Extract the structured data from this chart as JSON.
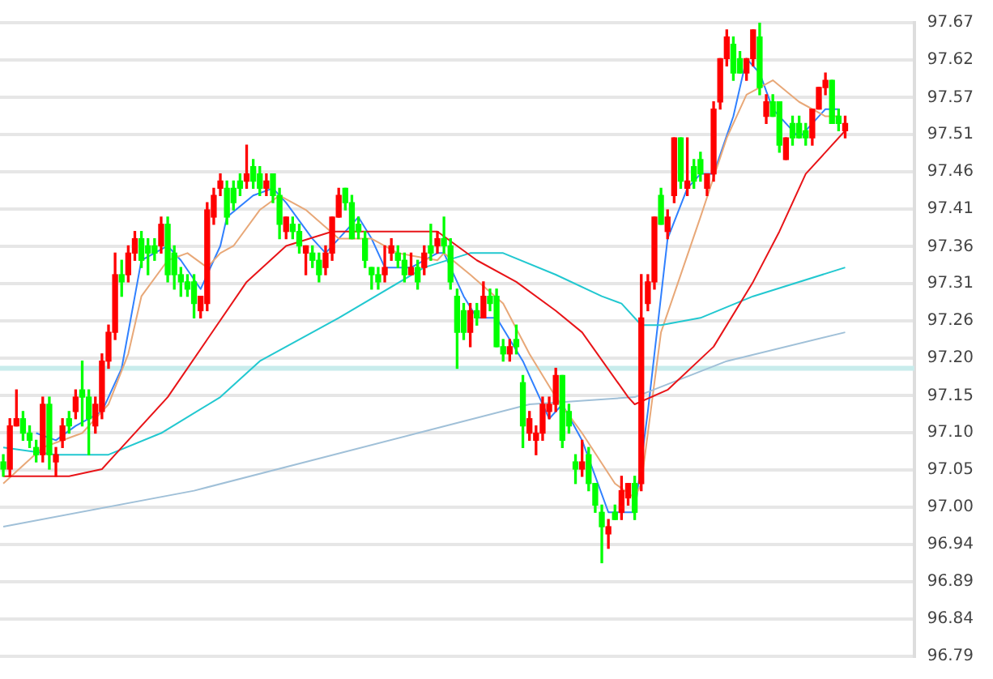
{
  "chart_data": {
    "type": "candlestick",
    "categories": [
      null,
      null,
      null,
      null,
      null,
      null,
      null,
      null,
      null,
      null,
      null,
      null,
      null,
      null,
      null,
      null,
      null,
      null,
      null,
      null,
      null,
      null,
      null,
      null,
      null,
      null,
      null,
      null,
      null,
      null,
      null,
      null,
      null,
      null,
      null,
      null,
      null,
      null,
      null,
      null,
      null,
      null,
      null,
      null,
      null,
      null,
      null,
      null,
      null,
      null,
      null,
      null,
      null,
      null,
      null,
      null,
      null,
      null,
      null,
      null,
      null,
      null,
      null,
      null,
      null,
      null,
      null,
      null,
      null,
      null,
      null,
      null,
      null,
      null,
      null,
      null,
      null,
      null,
      null,
      null,
      null,
      null,
      null,
      null,
      null,
      null,
      null,
      null,
      null,
      null,
      null,
      null,
      null,
      null,
      null,
      null,
      null,
      null,
      null,
      null,
      null,
      null,
      null,
      null,
      null,
      null,
      null,
      null,
      null,
      null,
      null,
      null,
      null,
      null,
      null,
      null,
      null,
      null,
      null,
      null,
      null,
      null,
      null,
      null,
      null,
      null,
      null,
      null,
      null
    ],
    "ohlc": [
      [
        97.06,
        97.07,
        97.04,
        97.05
      ],
      [
        97.05,
        97.12,
        97.04,
        97.11
      ],
      [
        97.11,
        97.16,
        97.11,
        97.12
      ],
      [
        97.12,
        97.13,
        97.09,
        97.1
      ],
      [
        97.1,
        97.11,
        97.08,
        97.09
      ],
      [
        97.08,
        97.09,
        97.06,
        97.07
      ],
      [
        97.07,
        97.15,
        97.06,
        97.14
      ],
      [
        97.14,
        97.15,
        97.05,
        97.07
      ],
      [
        97.06,
        97.08,
        97.04,
        97.07
      ],
      [
        97.09,
        97.12,
        97.08,
        97.11
      ],
      [
        97.12,
        97.13,
        97.1,
        97.11
      ],
      [
        97.13,
        97.16,
        97.12,
        97.15
      ],
      [
        97.16,
        97.2,
        97.11,
        97.15
      ],
      [
        97.15,
        97.16,
        97.07,
        97.12
      ],
      [
        97.11,
        97.15,
        97.1,
        97.14
      ],
      [
        97.13,
        97.21,
        97.12,
        97.2
      ],
      [
        97.2,
        97.25,
        97.19,
        97.24
      ],
      [
        97.24,
        97.35,
        97.23,
        97.32
      ],
      [
        97.32,
        97.34,
        97.29,
        97.31
      ],
      [
        97.32,
        97.36,
        97.31,
        97.35
      ],
      [
        97.35,
        97.38,
        97.34,
        97.37
      ],
      [
        97.37,
        97.38,
        97.33,
        97.34
      ],
      [
        97.36,
        97.37,
        97.32,
        97.35
      ],
      [
        97.36,
        97.37,
        97.34,
        97.35
      ],
      [
        97.36,
        97.4,
        97.35,
        97.39
      ],
      [
        97.39,
        97.4,
        97.31,
        97.32
      ],
      [
        97.35,
        97.36,
        97.3,
        97.32
      ],
      [
        97.32,
        97.33,
        97.29,
        97.31
      ],
      [
        97.31,
        97.32,
        97.29,
        97.3
      ],
      [
        97.31,
        97.32,
        97.26,
        97.28
      ],
      [
        97.27,
        97.29,
        97.26,
        97.29
      ],
      [
        97.28,
        97.42,
        97.27,
        97.41
      ],
      [
        97.4,
        97.44,
        97.39,
        97.43
      ],
      [
        97.44,
        97.46,
        97.43,
        97.45
      ],
      [
        97.44,
        97.45,
        97.39,
        97.4
      ],
      [
        97.44,
        97.45,
        97.41,
        97.42
      ],
      [
        97.45,
        97.46,
        97.43,
        97.44
      ],
      [
        97.45,
        97.5,
        97.44,
        97.46
      ],
      [
        97.47,
        97.48,
        97.44,
        97.45
      ],
      [
        97.46,
        97.47,
        97.43,
        97.44
      ],
      [
        97.44,
        97.46,
        97.43,
        97.45
      ],
      [
        97.46,
        97.46,
        97.42,
        97.43
      ],
      [
        97.43,
        97.44,
        97.37,
        97.39
      ],
      [
        97.38,
        97.4,
        97.37,
        97.4
      ],
      [
        97.39,
        97.4,
        97.37,
        97.38
      ],
      [
        97.38,
        97.39,
        97.35,
        97.36
      ],
      [
        97.35,
        97.36,
        97.32,
        97.36
      ],
      [
        97.35,
        97.36,
        97.33,
        97.34
      ],
      [
        97.34,
        97.35,
        97.31,
        97.32
      ],
      [
        97.33,
        97.36,
        97.32,
        97.35
      ],
      [
        97.35,
        97.4,
        97.34,
        97.4
      ],
      [
        97.4,
        97.44,
        97.4,
        97.43
      ],
      [
        97.44,
        97.44,
        97.41,
        97.42
      ],
      [
        97.42,
        97.43,
        97.37,
        97.37
      ],
      [
        97.39,
        97.4,
        97.37,
        97.38
      ],
      [
        97.37,
        97.38,
        97.33,
        97.34
      ],
      [
        97.33,
        97.33,
        97.3,
        97.32
      ],
      [
        97.32,
        97.33,
        97.3,
        97.31
      ],
      [
        97.32,
        97.36,
        97.31,
        97.33
      ],
      [
        97.35,
        97.37,
        97.34,
        97.36
      ],
      [
        97.35,
        97.36,
        97.33,
        97.34
      ],
      [
        97.34,
        97.35,
        97.31,
        97.32
      ],
      [
        97.32,
        97.35,
        97.32,
        97.33
      ],
      [
        97.33,
        97.34,
        97.3,
        97.31
      ],
      [
        97.33,
        97.36,
        97.32,
        97.35
      ],
      [
        97.36,
        97.39,
        97.34,
        97.35
      ],
      [
        97.36,
        97.38,
        97.35,
        97.37
      ],
      [
        97.37,
        97.4,
        97.35,
        97.36
      ],
      [
        97.36,
        97.37,
        97.3,
        97.31
      ],
      [
        97.29,
        97.3,
        97.19,
        97.24
      ],
      [
        97.27,
        97.28,
        97.23,
        97.24
      ],
      [
        97.24,
        97.28,
        97.22,
        97.27
      ],
      [
        97.27,
        97.28,
        97.25,
        97.26
      ],
      [
        97.26,
        97.31,
        97.26,
        97.29
      ],
      [
        97.29,
        97.3,
        97.27,
        97.28
      ],
      [
        97.29,
        97.3,
        97.22,
        97.22
      ],
      [
        97.22,
        97.23,
        97.2,
        97.21
      ],
      [
        97.21,
        97.23,
        97.2,
        97.22
      ],
      [
        97.23,
        97.25,
        97.21,
        97.22
      ],
      [
        97.17,
        97.18,
        97.08,
        97.11
      ],
      [
        97.1,
        97.13,
        97.09,
        97.12
      ],
      [
        97.09,
        97.11,
        97.07,
        97.1
      ],
      [
        97.1,
        97.15,
        97.09,
        97.14
      ],
      [
        97.13,
        97.15,
        97.12,
        97.14
      ],
      [
        97.14,
        97.19,
        97.13,
        97.18
      ],
      [
        97.18,
        97.18,
        97.08,
        97.09
      ],
      [
        97.13,
        97.14,
        97.1,
        97.11
      ],
      [
        97.06,
        97.07,
        97.03,
        97.05
      ],
      [
        97.05,
        97.09,
        97.04,
        97.06
      ],
      [
        97.07,
        97.08,
        97.02,
        97.03
      ],
      [
        97.03,
        97.03,
        96.99,
        97.0
      ],
      [
        96.99,
        97.0,
        96.92,
        96.97
      ],
      [
        96.96,
        96.98,
        96.94,
        96.97
      ],
      [
        96.99,
        97.0,
        96.98,
        96.98
      ],
      [
        96.99,
        97.04,
        96.98,
        97.02
      ],
      [
        97.01,
        97.03,
        97.0,
        97.03
      ],
      [
        97.03,
        97.04,
        96.98,
        96.99
      ],
      [
        97.03,
        97.32,
        97.02,
        97.26
      ],
      [
        97.28,
        97.32,
        97.27,
        97.31
      ],
      [
        97.31,
        97.4,
        97.3,
        97.4
      ],
      [
        97.43,
        97.44,
        97.39,
        97.39
      ],
      [
        97.38,
        97.41,
        97.37,
        97.4
      ],
      [
        97.43,
        97.51,
        97.42,
        97.51
      ],
      [
        97.51,
        97.51,
        97.44,
        97.45
      ],
      [
        97.44,
        97.51,
        97.43,
        97.45
      ],
      [
        97.47,
        97.48,
        97.44,
        97.45
      ],
      [
        97.48,
        97.49,
        97.45,
        97.46
      ],
      [
        97.44,
        97.46,
        97.43,
        97.46
      ],
      [
        97.46,
        97.56,
        97.45,
        97.55
      ],
      [
        97.56,
        97.62,
        97.55,
        97.62
      ],
      [
        97.62,
        97.66,
        97.61,
        97.65
      ],
      [
        97.64,
        97.65,
        97.59,
        97.6
      ],
      [
        97.62,
        97.63,
        97.6,
        97.6
      ],
      [
        97.6,
        97.62,
        97.59,
        97.62
      ],
      [
        97.62,
        97.66,
        97.61,
        97.66
      ],
      [
        97.65,
        97.67,
        97.57,
        97.58
      ],
      [
        97.54,
        97.57,
        97.53,
        97.56
      ],
      [
        97.56,
        97.57,
        97.54,
        97.54
      ],
      [
        97.56,
        97.56,
        97.49,
        97.5
      ],
      [
        97.48,
        97.51,
        97.48,
        97.51
      ],
      [
        97.53,
        97.54,
        97.5,
        97.51
      ],
      [
        97.53,
        97.54,
        97.51,
        97.51
      ],
      [
        97.52,
        97.53,
        97.5,
        97.51
      ],
      [
        97.51,
        97.55,
        97.5,
        97.55
      ],
      [
        97.55,
        97.58,
        97.55,
        97.58
      ],
      [
        97.58,
        97.6,
        97.57,
        97.59
      ],
      [
        97.59,
        97.59,
        97.53,
        97.53
      ],
      [
        97.54,
        97.55,
        97.52,
        97.53
      ],
      [
        97.52,
        97.54,
        97.51,
        97.53
      ]
    ],
    "colors": [
      "#00ff00",
      "#ff0000",
      "#ff0000",
      "#00ff00",
      "#00ff00",
      "#00ff00",
      "#ff0000",
      "#00ff00",
      "#ff0000",
      "#ff0000",
      "#00ff00",
      "#ff0000",
      "#00ff00",
      "#00ff00",
      "#ff0000",
      "#ff0000",
      "#ff0000",
      "#ff0000",
      "#00ff00",
      "#ff0000",
      "#ff0000",
      "#00ff00",
      "#00ff00",
      "#00ff00",
      "#ff0000",
      "#00ff00",
      "#00ff00",
      "#00ff00",
      "#00ff00",
      "#00ff00",
      "#ff0000",
      "#ff0000",
      "#ff0000",
      "#ff0000",
      "#00ff00",
      "#00ff00",
      "#00ff00",
      "#ff0000",
      "#00ff00",
      "#00ff00",
      "#ff0000",
      "#00ff00",
      "#00ff00",
      "#ff0000",
      "#00ff00",
      "#00ff00",
      "#ff0000",
      "#00ff00",
      "#00ff00",
      "#ff0000",
      "#ff0000",
      "#ff0000",
      "#00ff00",
      "#00ff00",
      "#00ff00",
      "#00ff00",
      "#00ff00",
      "#00ff00",
      "#ff0000",
      "#ff0000",
      "#00ff00",
      "#00ff00",
      "#ff0000",
      "#00ff00",
      "#ff0000",
      "#00ff00",
      "#ff0000",
      "#00ff00",
      "#00ff00",
      "#00ff00",
      "#00ff00",
      "#ff0000",
      "#00ff00",
      "#ff0000",
      "#00ff00",
      "#00ff00",
      "#00ff00",
      "#ff0000",
      "#00ff00",
      "#00ff00",
      "#ff0000",
      "#ff0000",
      "#ff0000",
      "#ff0000",
      "#ff0000",
      "#00ff00",
      "#00ff00",
      "#00ff00",
      "#ff0000",
      "#00ff00",
      "#00ff00",
      "#00ff00",
      "#ff0000",
      "#00ff00",
      "#ff0000",
      "#ff0000",
      "#00ff00",
      "#ff0000",
      "#ff0000",
      "#ff0000",
      "#00ff00",
      "#ff0000",
      "#ff0000",
      "#00ff00",
      "#ff0000",
      "#00ff00",
      "#00ff00",
      "#ff0000",
      "#ff0000",
      "#ff0000",
      "#ff0000",
      "#00ff00",
      "#00ff00",
      "#ff0000",
      "#ff0000",
      "#00ff00",
      "#ff0000",
      "#00ff00",
      "#00ff00",
      "#ff0000",
      "#00ff00",
      "#00ff00",
      "#00ff00",
      "#ff0000",
      "#ff0000",
      "#ff0000",
      "#00ff00",
      "#00ff00",
      "#ff0000"
    ],
    "series": [
      {
        "type": "line",
        "color": "#e81418",
        "values": [
          97.04,
          null,
          null,
          null,
          null,
          null,
          null,
          null,
          null,
          null,
          97.04,
          null,
          null,
          null,
          null,
          97.05,
          null,
          97.07,
          null,
          null,
          null,
          null,
          null,
          null,
          null,
          97.15,
          null,
          null,
          null,
          null,
          null,
          97.23,
          null,
          null,
          null,
          null,
          null,
          97.31,
          null,
          null,
          null,
          null,
          null,
          97.36,
          null,
          null,
          null,
          null,
          null,
          null,
          97.38,
          null,
          null,
          null,
          null,
          null,
          null,
          null,
          null,
          null,
          97.38,
          null,
          null,
          null,
          null,
          null,
          97.38,
          null,
          null,
          null,
          null,
          null,
          97.34,
          null,
          null,
          null,
          null,
          null,
          97.31,
          null,
          null,
          null,
          null,
          null,
          97.27,
          null,
          null,
          null,
          97.24,
          null,
          null,
          null,
          null,
          null,
          null,
          97.15,
          97.14,
          null,
          null,
          null,
          null,
          97.16,
          null,
          null,
          null,
          null,
          null,
          null,
          97.22,
          null,
          null,
          null,
          null,
          null,
          97.31,
          null,
          null,
          null,
          97.38,
          null,
          null,
          null,
          97.46,
          null,
          null,
          null,
          null,
          null,
          97.52
        ]
      },
      {
        "type": "line",
        "color": "#22c8d0",
        "values": [
          97.08,
          null,
          null,
          null,
          null,
          null,
          null,
          null,
          97.07,
          null,
          null,
          null,
          null,
          null,
          null,
          null,
          97.07,
          null,
          null,
          null,
          null,
          null,
          null,
          null,
          97.1,
          null,
          null,
          null,
          null,
          null,
          null,
          null,
          null,
          97.15,
          null,
          null,
          null,
          null,
          null,
          97.2,
          null,
          null,
          null,
          null,
          null,
          null,
          null,
          null,
          null,
          null,
          null,
          97.26,
          null,
          null,
          null,
          null,
          null,
          null,
          null,
          null,
          null,
          null,
          null,
          null,
          97.33,
          null,
          null,
          null,
          null,
          null,
          null,
          97.35,
          null,
          null,
          null,
          null,
          97.35,
          null,
          null,
          null,
          null,
          null,
          null,
          null,
          97.32,
          null,
          null,
          null,
          null,
          null,
          null,
          97.29,
          null,
          null,
          97.28,
          null,
          null,
          97.25,
          null,
          null,
          97.25,
          null,
          null,
          null,
          null,
          null,
          97.26,
          null,
          null,
          null,
          null,
          null,
          null,
          null,
          97.29,
          null,
          null,
          null,
          null,
          null,
          null,
          null,
          null,
          null,
          null,
          null,
          null,
          null,
          97.33
        ]
      },
      {
        "type": "line",
        "color": "#a0c0d8",
        "values": [
          96.97,
          null,
          null,
          null,
          null,
          null,
          null,
          null,
          null,
          null,
          null,
          null,
          null,
          null,
          null,
          null,
          null,
          null,
          null,
          null,
          null,
          null,
          null,
          null,
          null,
          null,
          null,
          null,
          null,
          97.02,
          null,
          null,
          null,
          null,
          null,
          null,
          null,
          null,
          null,
          null,
          null,
          null,
          null,
          null,
          null,
          null,
          null,
          null,
          null,
          null,
          null,
          null,
          null,
          null,
          null,
          null,
          null,
          null,
          null,
          null,
          null,
          null,
          null,
          97.1,
          null,
          null,
          null,
          null,
          null,
          null,
          null,
          null,
          null,
          null,
          null,
          null,
          null,
          null,
          null,
          null,
          97.14,
          null,
          null,
          null,
          null,
          null,
          null,
          null,
          null,
          null,
          null,
          null,
          null,
          null,
          null,
          null,
          97.15,
          null,
          null,
          null,
          null,
          null,
          null,
          null,
          null,
          null,
          null,
          null,
          null,
          null,
          97.2,
          null,
          null,
          null,
          null,
          null,
          null,
          null,
          null,
          null,
          null,
          null,
          null,
          null,
          null,
          null,
          null,
          null,
          97.24
        ]
      },
      {
        "type": "line",
        "color": "#e8a878",
        "values": [
          97.03,
          null,
          null,
          null,
          null,
          null,
          97.08,
          null,
          null,
          null,
          null,
          null,
          97.1,
          null,
          null,
          null,
          97.14,
          null,
          null,
          97.21,
          null,
          97.29,
          null,
          null,
          null,
          97.34,
          null,
          null,
          97.35,
          null,
          null,
          97.33,
          null,
          97.35,
          null,
          97.36,
          null,
          null,
          null,
          97.41,
          null,
          null,
          97.43,
          null,
          null,
          null,
          97.41,
          null,
          null,
          null,
          null,
          97.37,
          null,
          null,
          null,
          null,
          97.37,
          null,
          null,
          null,
          97.35,
          null,
          null,
          null,
          null,
          null,
          97.34,
          97.35,
          null,
          null,
          null,
          97.32,
          null,
          null,
          null,
          null,
          97.28,
          null,
          null,
          null,
          97.21,
          null,
          null,
          null,
          97.15,
          null,
          null,
          null,
          97.1,
          null,
          null,
          null,
          null,
          97.03,
          null,
          null,
          97.01,
          97.03,
          null,
          null,
          97.24,
          null,
          null,
          null,
          null,
          null,
          97.4,
          null,
          null,
          null,
          97.51,
          null,
          null,
          97.57,
          null,
          null,
          null,
          97.59,
          null,
          null,
          null,
          97.56,
          null,
          null,
          null,
          97.54,
          null,
          97.54,
          null
        ]
      },
      {
        "type": "line",
        "color": "#3080ff",
        "values": [
          null,
          null,
          null,
          null,
          null,
          97.1,
          null,
          null,
          97.09,
          null,
          null,
          97.11,
          null,
          null,
          null,
          97.13,
          null,
          null,
          97.19,
          null,
          97.29,
          97.34,
          null,
          null,
          null,
          97.36,
          null,
          97.34,
          null,
          null,
          97.3,
          null,
          null,
          97.36,
          97.4,
          null,
          null,
          null,
          97.43,
          null,
          null,
          97.44,
          null,
          97.42,
          null,
          null,
          null,
          97.37,
          null,
          97.35,
          null,
          97.37,
          null,
          null,
          97.4,
          null,
          97.37,
          null,
          97.33,
          null,
          null,
          null,
          97.33,
          null,
          null,
          null,
          97.35,
          97.35,
          null,
          null,
          97.29,
          null,
          97.26,
          null,
          null,
          97.26,
          null,
          null,
          null,
          97.2,
          null,
          null,
          null,
          97.12,
          null,
          97.14,
          null,
          null,
          97.09,
          null,
          null,
          null,
          96.99,
          null,
          null,
          96.99,
          96.99,
          null,
          97.13,
          null,
          null,
          97.37,
          null,
          null,
          97.44,
          null,
          97.46,
          null,
          97.46,
          null,
          null,
          97.54,
          null,
          97.62,
          null,
          97.6,
          null,
          97.55,
          null,
          null,
          null,
          97.51,
          null,
          null,
          null,
          97.55,
          null,
          97.55,
          null
        ]
      }
    ],
    "ylim": [
      96.79,
      97.67
    ],
    "yticks": [
      {
        "value": 96.79,
        "label": "96.79"
      },
      {
        "value": 96.842,
        "label": "96.84"
      },
      {
        "value": 96.894,
        "label": "96.89"
      },
      {
        "value": 96.945,
        "label": "96.94"
      },
      {
        "value": 96.997,
        "label": "97.00"
      },
      {
        "value": 97.049,
        "label": "97.05"
      },
      {
        "value": 97.101,
        "label": "97.10"
      },
      {
        "value": 97.152,
        "label": "97.15"
      },
      {
        "value": 97.204,
        "label": "97.20"
      },
      {
        "value": 97.256,
        "label": "97.26"
      },
      {
        "value": 97.308,
        "label": "97.31"
      },
      {
        "value": 97.359,
        "label": "97.36"
      },
      {
        "value": 97.411,
        "label": "97.41"
      },
      {
        "value": 97.463,
        "label": "97.46"
      },
      {
        "value": 97.515,
        "label": "97.51"
      },
      {
        "value": 97.566,
        "label": "97.57"
      },
      {
        "value": 97.618,
        "label": "97.62"
      },
      {
        "value": 97.67,
        "label": "97.67"
      }
    ],
    "ref_lines": [
      {
        "axis": "y",
        "value": 97.19,
        "color": "#c8ecec"
      }
    ],
    "tick_labels": "y",
    "grid": "y",
    "legend": false,
    "marker": "none"
  }
}
